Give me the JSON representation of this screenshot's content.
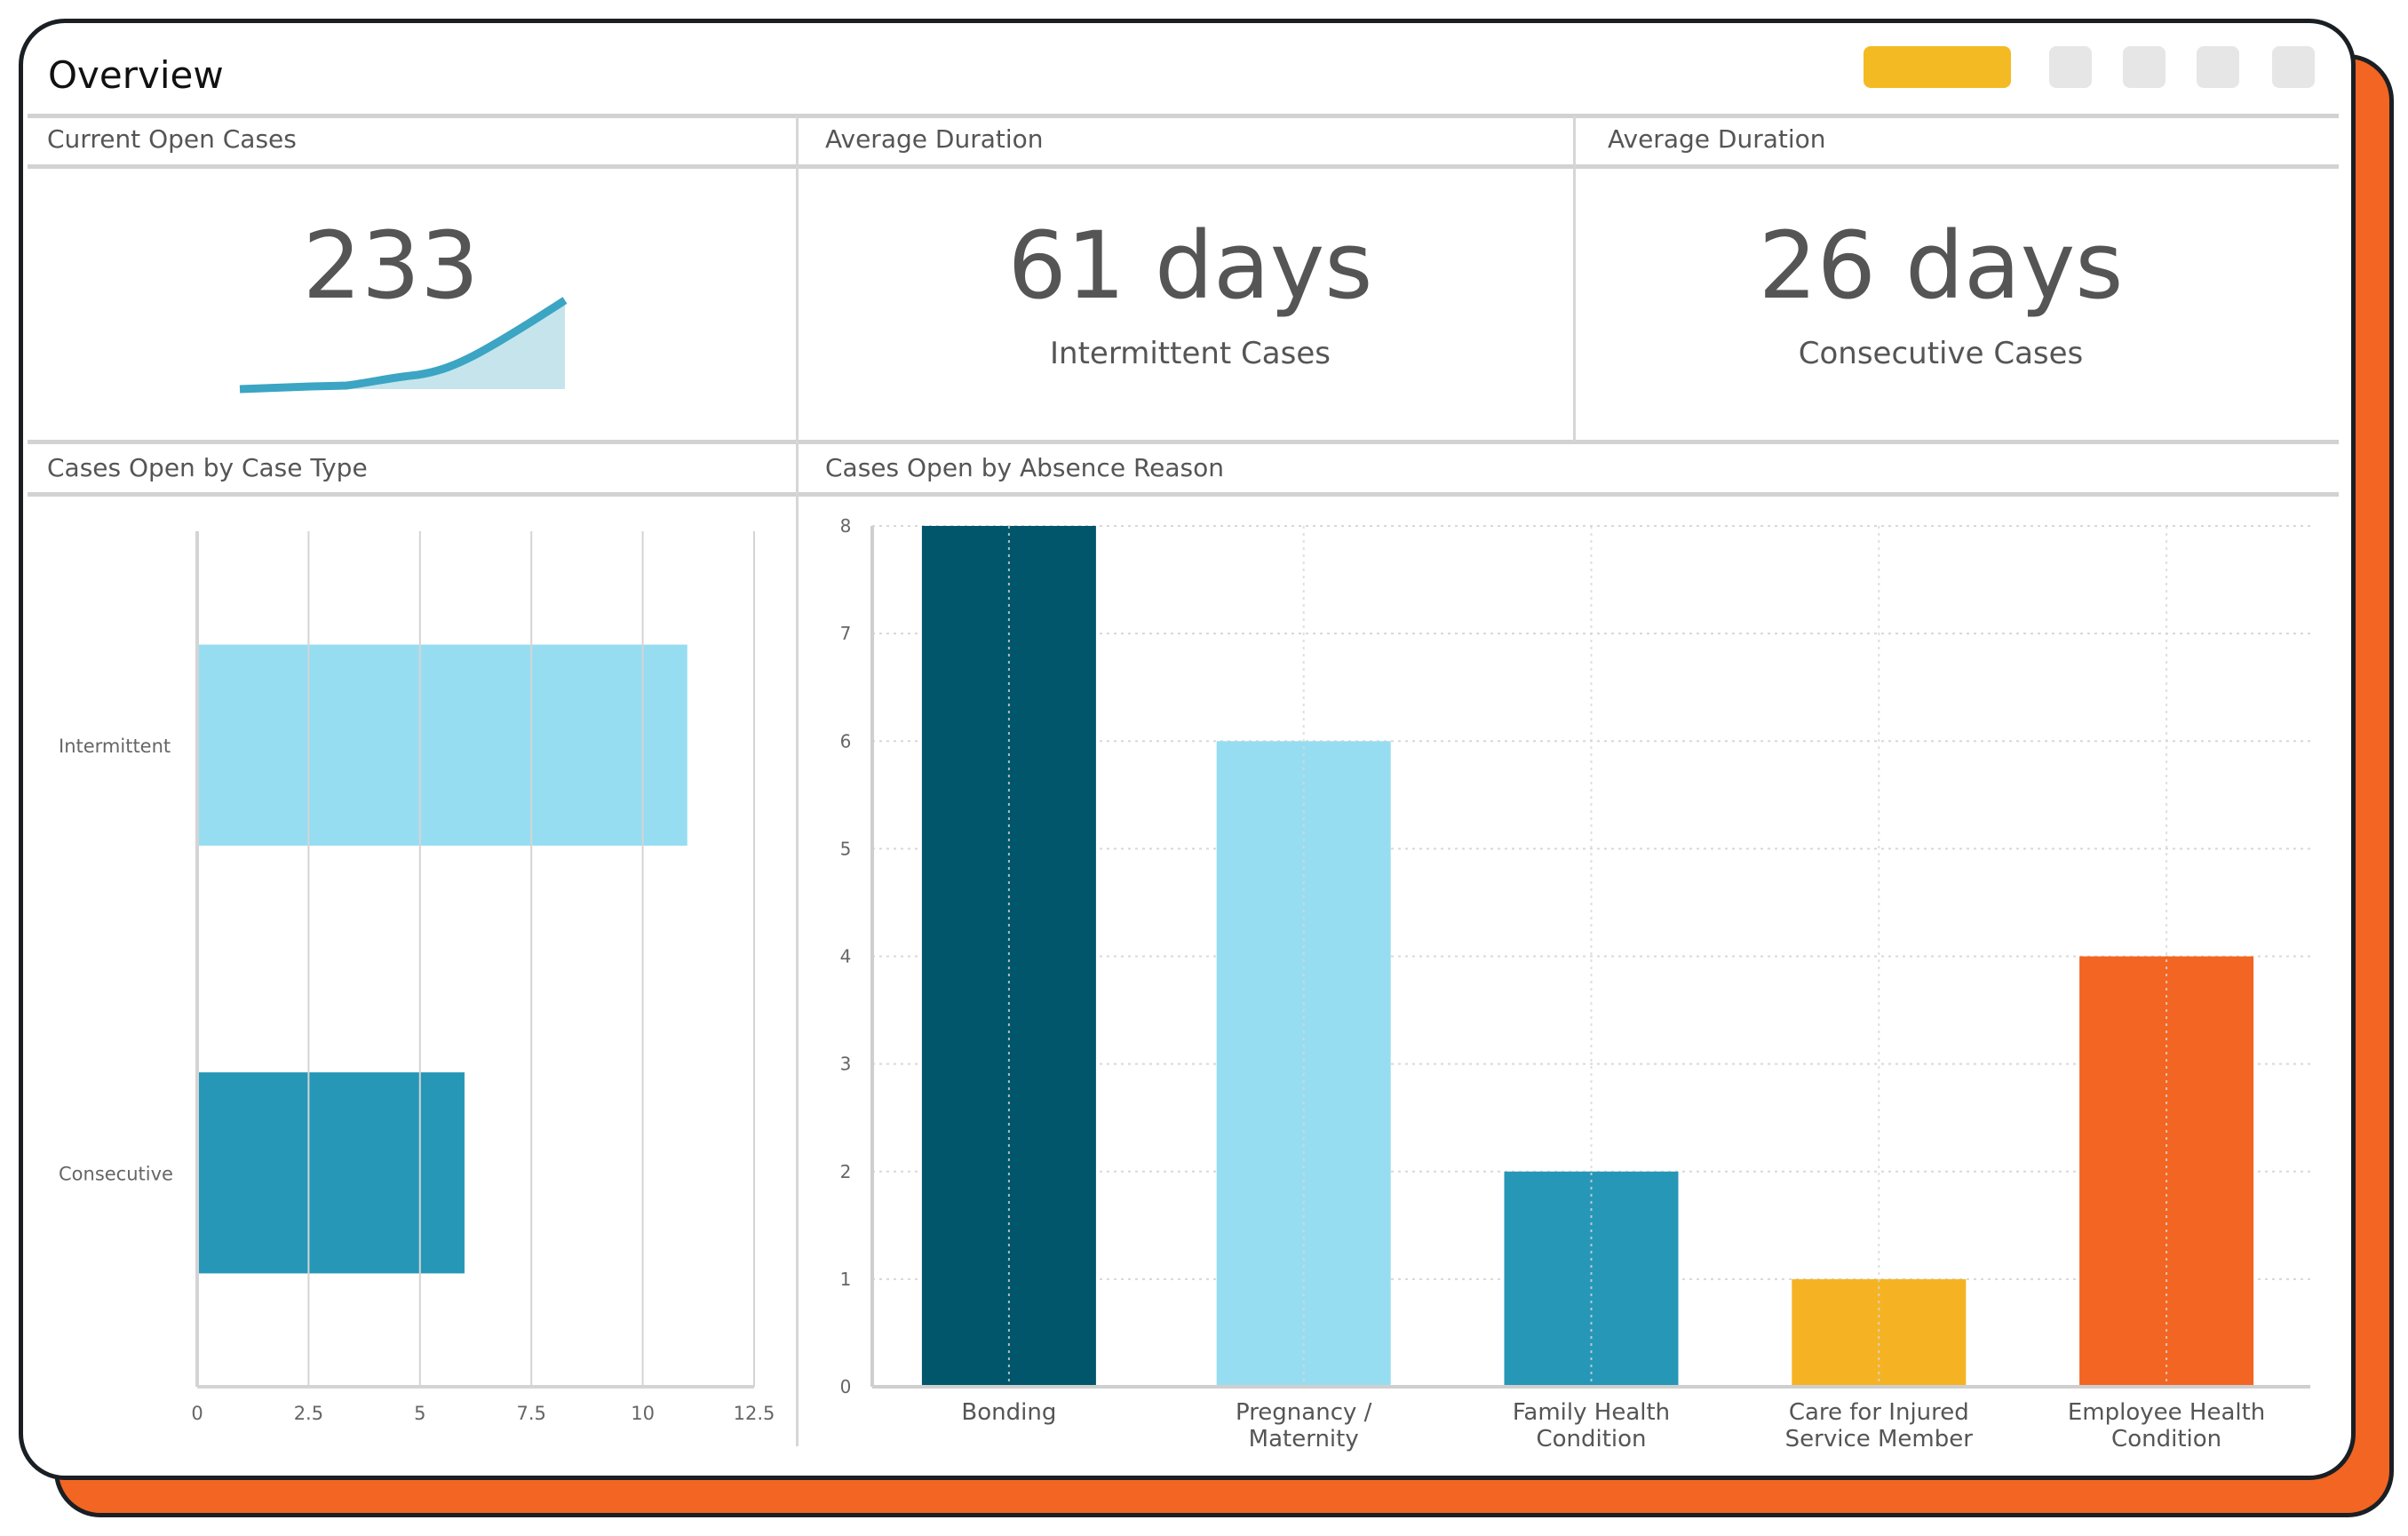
{
  "header": {
    "title": "Overview",
    "accent_color": "#f3ba23"
  },
  "cards": [
    {
      "label": "Current Open Cases",
      "value": "233",
      "sparkline_icon": "trend-up-sparkline"
    },
    {
      "label": "Average Duration",
      "value": "61 days",
      "caption": "Intermittent Cases"
    },
    {
      "label": "Average Duration",
      "value": "26 days",
      "caption": "Consecutive Cases"
    }
  ],
  "sections": {
    "case_type": "Cases Open by Case Type",
    "absence_reason": "Cases Open by Absence Reason"
  },
  "chart_data": [
    {
      "type": "bar",
      "orientation": "horizontal",
      "title": "Cases Open by Case Type",
      "categories": [
        "Intermittent",
        "Consecutive"
      ],
      "values": [
        11,
        6
      ],
      "colors": [
        "#97ddf1",
        "#2697b7"
      ],
      "xlim": [
        0,
        12.5
      ],
      "xticks": [
        "0",
        "2.5",
        "5",
        "7.5",
        "10",
        "12.5"
      ],
      "grid": true
    },
    {
      "type": "bar",
      "orientation": "vertical",
      "title": "Cases Open by Absence Reason",
      "categories": [
        [
          "Bonding"
        ],
        [
          "Pregnancy /",
          "Maternity"
        ],
        [
          "Family Health",
          "Condition"
        ],
        [
          "Care for Injured",
          "Service Member"
        ],
        [
          "Employee Health",
          "Condition"
        ]
      ],
      "values": [
        8,
        6,
        2,
        1,
        4
      ],
      "colors": [
        "#02566b",
        "#97ddf1",
        "#2697b7",
        "#f5b324",
        "#f26522"
      ],
      "ylim": [
        0,
        8
      ],
      "yticks": [
        "0",
        "1",
        "2",
        "3",
        "4",
        "5",
        "6",
        "7",
        "8"
      ],
      "grid": true
    }
  ]
}
